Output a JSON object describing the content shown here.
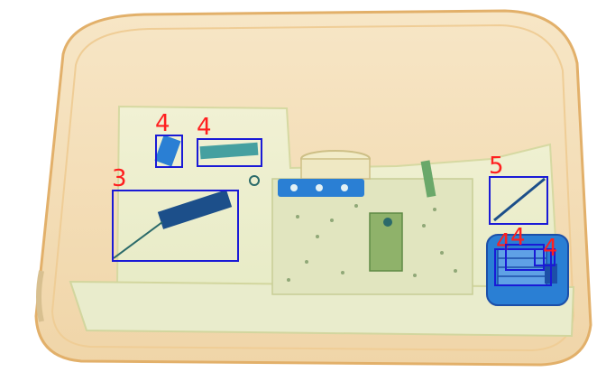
{
  "scene": {
    "palette": {
      "outer_case": "#f3dcb4",
      "outer_case_edge": "#e5b56e",
      "inner_tray": "#eef0cf",
      "inner_tray_edge": "#d9dca8",
      "pcb": "#e3e6c2",
      "component_green": "#6aa86a",
      "component_dark": "#2b6a6a",
      "object_blue": "#2a7fd4",
      "object_dark_blue": "#1c4fa8",
      "box_outline": "#1a1ad6",
      "label_color": "#ff1f1f"
    }
  },
  "detections": [
    {
      "id": "det-1",
      "label": "4"
    },
    {
      "id": "det-2",
      "label": "4"
    },
    {
      "id": "det-3",
      "label": "3"
    },
    {
      "id": "det-4",
      "label": "5"
    },
    {
      "id": "det-5",
      "label": "4"
    },
    {
      "id": "det-6",
      "label": "4"
    },
    {
      "id": "det-7",
      "label": "4"
    }
  ]
}
